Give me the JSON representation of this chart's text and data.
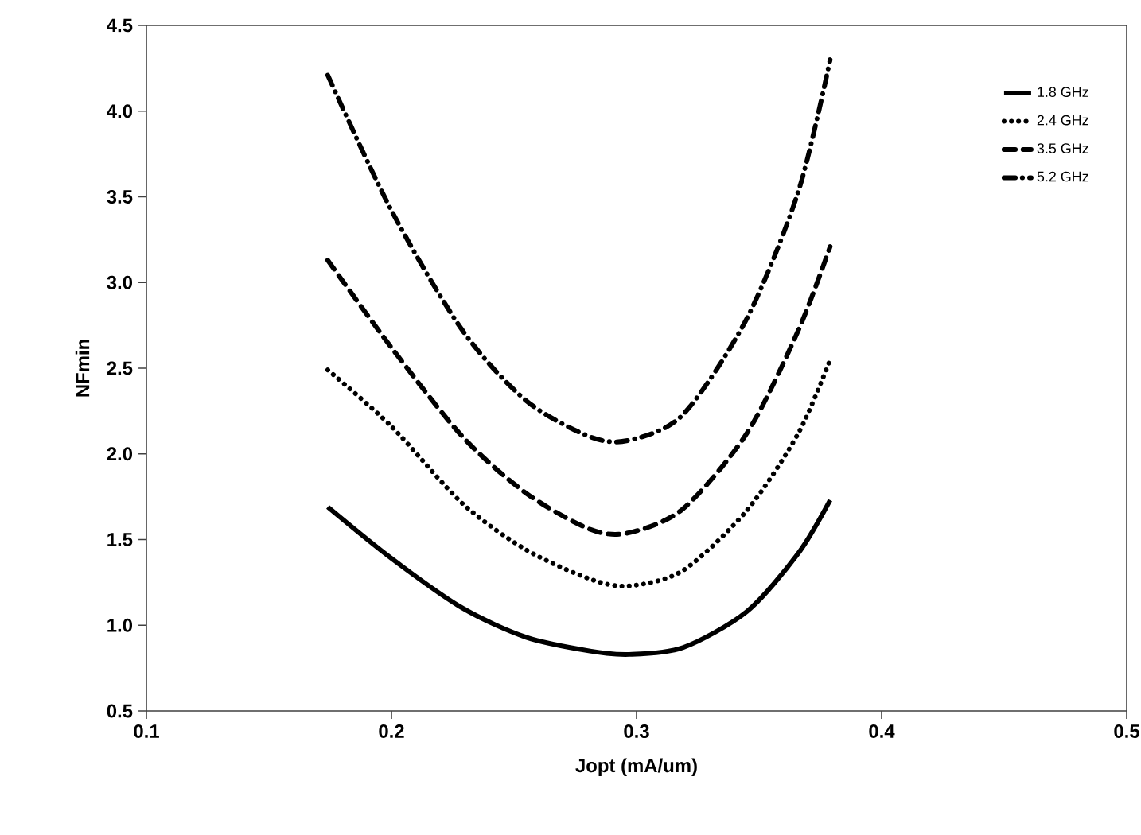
{
  "chart_data": {
    "type": "line",
    "xlabel": "Jopt (mA/um)",
    "ylabel": "NFmin",
    "x": [
      0.174,
      0.2,
      0.229,
      0.255,
      0.281,
      0.297,
      0.319,
      0.345,
      0.366,
      0.379
    ],
    "series": [
      {
        "name": "1.8 GHz",
        "color": "#000000",
        "line_style": "solid",
        "values": [
          1.69,
          1.39,
          1.1,
          0.93,
          0.85,
          0.83,
          0.87,
          1.08,
          1.42,
          1.73
        ]
      },
      {
        "name": "2.4 GHz",
        "color": "#000000",
        "line_style": "dotted",
        "values": [
          2.49,
          2.16,
          1.71,
          1.44,
          1.27,
          1.23,
          1.32,
          1.67,
          2.12,
          2.55
        ]
      },
      {
        "name": "3.5 GHz",
        "color": "#000000",
        "line_style": "dashed",
        "values": [
          3.13,
          2.62,
          2.1,
          1.77,
          1.56,
          1.54,
          1.68,
          2.12,
          2.72,
          3.21
        ]
      },
      {
        "name": "5.2 GHz",
        "color": "#000000",
        "line_style": "dashdot",
        "values": [
          4.21,
          3.42,
          2.72,
          2.31,
          2.1,
          2.08,
          2.23,
          2.79,
          3.53,
          4.3
        ]
      }
    ],
    "xlim": [
      0.1,
      0.5
    ],
    "ylim": [
      0.5,
      4.5
    ],
    "xticks": [
      {
        "value": 0.1,
        "label": "0.1"
      },
      {
        "value": 0.2,
        "label": "0.2"
      },
      {
        "value": 0.3,
        "label": "0.3"
      },
      {
        "value": 0.4,
        "label": "0.4"
      },
      {
        "value": 0.5,
        "label": "0.5"
      }
    ],
    "yticks": [
      {
        "value": 0.5,
        "label": "0.5"
      },
      {
        "value": 1,
        "label": "1.0"
      },
      {
        "value": 1.5,
        "label": "1.5"
      },
      {
        "value": 2,
        "label": "2.0"
      },
      {
        "value": 2.5,
        "label": "2.5"
      },
      {
        "value": 3,
        "label": "3.0"
      },
      {
        "value": 3.5,
        "label": "3.5"
      },
      {
        "value": 4,
        "label": "4.0"
      },
      {
        "value": 4.5,
        "label": "4.5"
      }
    ],
    "grid": false,
    "legend": "top right",
    "marker": "none"
  }
}
